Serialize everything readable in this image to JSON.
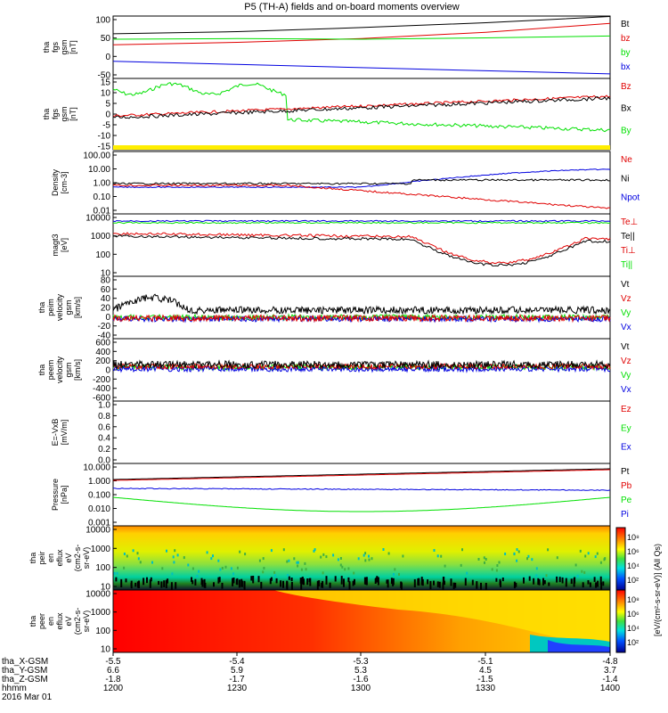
{
  "title": "P5 (TH-A) fields and on-board moments overview",
  "colors": {
    "black": "#000000",
    "red": "#e00000",
    "green": "#00e000",
    "blue": "#0000e0",
    "yellow": "#ffee00"
  },
  "panels": [
    {
      "ylabel": [
        "tha",
        "fgs",
        "gsm",
        "[nT]"
      ],
      "ticks": [
        "100",
        "50",
        "0",
        "-50"
      ],
      "legend": [
        {
          "text": "Bt",
          "color": "black"
        },
        {
          "text": "bz",
          "color": "red"
        },
        {
          "text": "by",
          "color": "green"
        },
        {
          "text": "bx",
          "color": "blue"
        }
      ]
    },
    {
      "ylabel": [
        "tha",
        "fgs",
        "gsm",
        "[nT]"
      ],
      "ticks": [
        "15",
        "10",
        "5",
        "0",
        "-5",
        "-10",
        "-15"
      ],
      "legend": [
        {
          "text": "Bz",
          "color": "red"
        },
        {
          "text": "Bx",
          "color": "black"
        },
        {
          "text": "By",
          "color": "green"
        }
      ]
    },
    {
      "ylabel": [
        "Density",
        "[cm-3]"
      ],
      "ticks": [
        "100.00",
        "10.00",
        "1.00",
        "0.10",
        "0.01"
      ],
      "legend": [
        {
          "text": "Ne",
          "color": "red"
        },
        {
          "text": "Ni",
          "color": "black"
        },
        {
          "text": "Npot",
          "color": "blue"
        }
      ]
    },
    {
      "ylabel": [
        "magt3",
        "[eV]"
      ],
      "ticks": [
        "10000",
        "1000",
        "100",
        "10"
      ],
      "legend": [
        {
          "text": "Te⊥",
          "color": "red"
        },
        {
          "text": "Te||",
          "color": "black"
        },
        {
          "text": "Ti⊥",
          "color": "red"
        },
        {
          "text": "Ti||",
          "color": "green"
        }
      ]
    },
    {
      "ylabel": [
        "tha",
        "peim",
        "velocity",
        "gsm",
        "[km/s]"
      ],
      "ticks": [
        "80",
        "60",
        "40",
        "20",
        "0",
        "-20",
        "-40"
      ],
      "legend": [
        {
          "text": "Vt",
          "color": "black"
        },
        {
          "text": "Vz",
          "color": "red"
        },
        {
          "text": "Vy",
          "color": "green"
        },
        {
          "text": "Vx",
          "color": "blue"
        }
      ]
    },
    {
      "ylabel": [
        "tha",
        "peem",
        "velocity",
        "gsm",
        "[km/s]"
      ],
      "ticks": [
        "600",
        "400",
        "200",
        "0",
        "-200",
        "-400",
        "-600"
      ],
      "legend": [
        {
          "text": "Vt",
          "color": "black"
        },
        {
          "text": "Vz",
          "color": "red"
        },
        {
          "text": "Vy",
          "color": "green"
        },
        {
          "text": "Vx",
          "color": "blue"
        }
      ]
    },
    {
      "ylabel": [
        "E=-VxB",
        "[mV/m]"
      ],
      "ticks": [
        "1.0",
        "0.8",
        "0.6",
        "0.4",
        "0.2",
        "0.0"
      ],
      "legend": [
        {
          "text": "Ez",
          "color": "red"
        },
        {
          "text": "Ey",
          "color": "green"
        },
        {
          "text": "Ex",
          "color": "blue"
        }
      ]
    },
    {
      "ylabel": [
        "Pressure",
        "[nPa]"
      ],
      "ticks": [
        "10.000",
        "1.000",
        "0.100",
        "0.010",
        "0.001"
      ],
      "legend": [
        {
          "text": "Pt",
          "color": "black"
        },
        {
          "text": "Pb",
          "color": "red"
        },
        {
          "text": "Pe",
          "color": "green"
        },
        {
          "text": "Pi",
          "color": "blue"
        }
      ]
    },
    {
      "ylabel": [
        "tha",
        "peir",
        "en",
        "eflux",
        "eV",
        "(cm2-s-",
        "sr-eV)"
      ],
      "ticks": [
        "10000",
        "1000",
        "100",
        "10"
      ],
      "legend": []
    },
    {
      "ylabel": [
        "tha",
        "peer",
        "en",
        "eflux",
        "eV",
        "(cm2-s-",
        "sr-eV)"
      ],
      "ticks": [
        "10000",
        "1000",
        "100",
        "10"
      ],
      "legend": []
    }
  ],
  "colorbar": {
    "ticks": [
      "10⁸",
      "10⁶",
      "10⁴",
      "10²",
      "10⁸",
      "10⁶",
      "10⁴",
      "10²"
    ],
    "label": "[eV/(cm²-s-sr-eV)] (All Qs)"
  },
  "xaxis": {
    "rows": [
      {
        "label": "tha_X-GSM",
        "values": [
          "-5.5",
          "-5.4",
          "-5.3",
          "-5.1",
          "-4.8"
        ]
      },
      {
        "label": "tha_Y-GSM",
        "values": [
          "6.6",
          "5.9",
          "5.3",
          "4.5",
          "3.7"
        ]
      },
      {
        "label": "tha_Z-GSM",
        "values": [
          "-1.8",
          "-1.7",
          "-1.6",
          "-1.5",
          "-1.4"
        ]
      },
      {
        "label": "hhmm",
        "values": [
          "1200",
          "1230",
          "1300",
          "1330",
          "1400"
        ]
      }
    ],
    "date": "2016 Mar 01"
  },
  "chart_data": {
    "type": "line",
    "title": "P5 (TH-A) fields and on-board moments overview",
    "x": [
      "1200",
      "1230",
      "1300",
      "1330",
      "1400"
    ],
    "series": [
      {
        "name": "Bt",
        "values": [
          55,
          62,
          75,
          90,
          110
        ]
      },
      {
        "name": "bz",
        "values": [
          20,
          28,
          40,
          60,
          88
        ]
      },
      {
        "name": "by",
        "values": [
          38,
          40,
          38,
          42,
          48
        ]
      },
      {
        "name": "bx",
        "values": [
          -32,
          -42,
          -52,
          -62,
          -72
        ]
      }
    ],
    "ylim": [
      -75,
      100
    ]
  }
}
